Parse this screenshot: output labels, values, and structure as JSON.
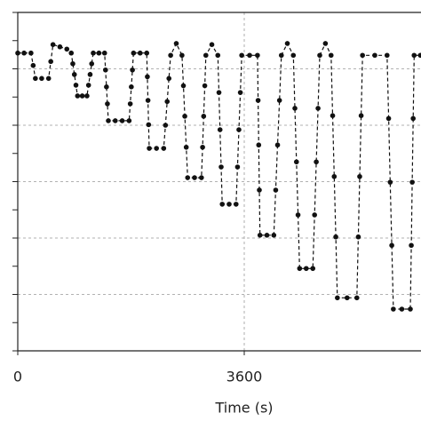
{
  "chart_data": {
    "type": "line",
    "xlabel": "Time (s)",
    "x": [
      0,
      100,
      210,
      245,
      280,
      380,
      490,
      525,
      560,
      670,
      780,
      850,
      875,
      900,
      925,
      950,
      1025,
      1100,
      1125,
      1150,
      1175,
      1200,
      1290,
      1380,
      1395,
      1410,
      1425,
      1440,
      1550,
      1660,
      1770,
      1788,
      1805,
      1823,
      1840,
      1945,
      2050,
      2060,
      2070,
      2080,
      2090,
      2205,
      2320,
      2348,
      2375,
      2403,
      2430,
      2520,
      2610,
      2633,
      2655,
      2678,
      2700,
      2810,
      2920,
      2938,
      2955,
      2973,
      2990,
      3085,
      3180,
      3198,
      3215,
      3233,
      3250,
      3360,
      3470,
      3493,
      3515,
      3538,
      3560,
      3685,
      3810,
      3820,
      3830,
      3840,
      3850,
      3960,
      4070,
      4100,
      4130,
      4160,
      4190,
      4285,
      4380,
      4405,
      4430,
      4455,
      4480,
      4585,
      4690,
      4718,
      4745,
      4773,
      4800,
      4890,
      4980,
      5005,
      5030,
      5055,
      5080,
      5235,
      5390,
      5413,
      5435,
      5458,
      5480,
      5675,
      5870,
      5895,
      5920,
      5945,
      5970,
      6105,
      6240,
      6255,
      6270,
      6285,
      6300,
      6400
    ],
    "values": [
      5.28,
      5.28,
      5.28,
      5.06,
      4.83,
      4.83,
      4.83,
      5.13,
      5.43,
      5.39,
      5.35,
      5.28,
      5.09,
      4.9,
      4.71,
      4.52,
      4.52,
      4.52,
      4.71,
      4.9,
      5.09,
      5.28,
      5.28,
      5.28,
      4.98,
      4.68,
      4.38,
      4.08,
      4.08,
      4.08,
      4.08,
      4.38,
      4.68,
      4.98,
      5.28,
      5.28,
      5.28,
      4.86,
      4.44,
      4.01,
      3.59,
      3.59,
      3.59,
      4.0,
      4.42,
      4.83,
      5.24,
      5.45,
      5.24,
      4.7,
      4.16,
      3.61,
      3.07,
      3.07,
      3.07,
      3.61,
      4.16,
      4.7,
      5.24,
      5.43,
      5.24,
      4.58,
      3.92,
      3.26,
      2.6,
      2.6,
      2.6,
      3.26,
      3.92,
      4.58,
      5.24,
      5.24,
      5.24,
      4.44,
      3.65,
      2.85,
      2.05,
      2.05,
      2.05,
      2.85,
      3.65,
      4.44,
      5.24,
      5.45,
      5.24,
      4.3,
      3.35,
      2.41,
      1.46,
      1.46,
      1.46,
      2.41,
      3.35,
      4.3,
      5.24,
      5.45,
      5.24,
      4.17,
      3.09,
      2.02,
      0.94,
      0.94,
      0.94,
      2.02,
      3.09,
      4.17,
      5.24,
      5.24,
      5.24,
      4.12,
      2.99,
      1.87,
      0.74,
      0.74,
      0.74,
      1.87,
      2.99,
      4.12,
      5.24,
      5.24
    ],
    "color": "#111111",
    "xlim": [
      0,
      6400
    ],
    "xticks": [
      0,
      3600
    ],
    "ylim": [
      0,
      6
    ],
    "yticks": [
      0,
      0.5,
      1,
      1.5,
      2,
      2.5,
      3,
      3.5,
      4,
      4.5,
      5,
      5.5,
      6
    ],
    "grid": true,
    "line_style": "dashed",
    "markers": true
  }
}
